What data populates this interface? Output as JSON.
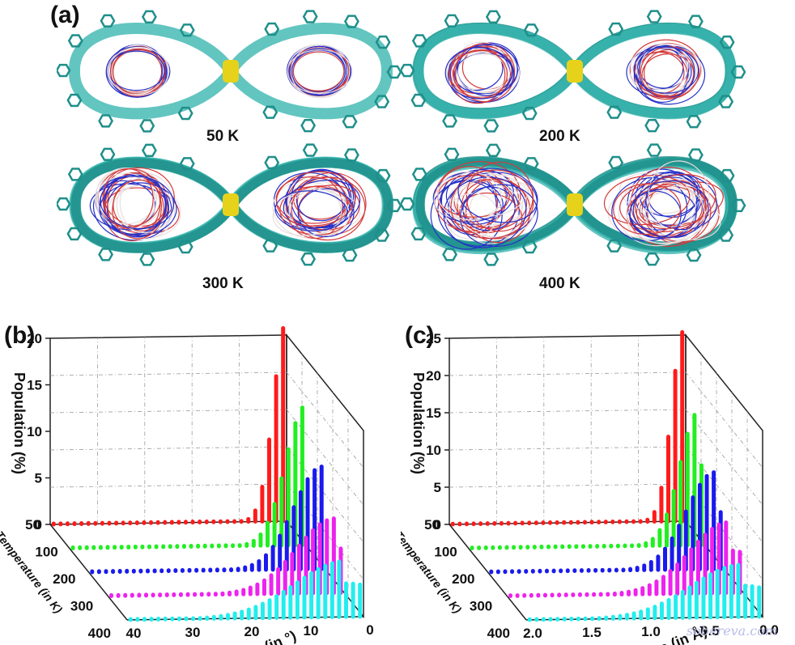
{
  "figure": {
    "panel_a_label": "(a)",
    "panel_b_label": "(b)",
    "panel_c_label": "(c)",
    "watermark": "sobereva.com"
  },
  "snapshots": [
    {
      "caption": "50 K",
      "spread": 0.05
    },
    {
      "caption": "200 K",
      "spread": 0.25
    },
    {
      "caption": "300 K",
      "spread": 0.5
    },
    {
      "caption": "400 K",
      "spread": 0.75
    }
  ],
  "colors": {
    "framework": "#3bb6b0",
    "framework_dark": "#1f8f8a",
    "junction": "#e6d21a",
    "ring_red": "#d43a3a",
    "ring_blue": "#2530c8",
    "ring_white": "#e8dede"
  },
  "chart_data": [
    {
      "type": "bar3d",
      "panel": "(b)",
      "zlabel": "Population (%)",
      "xlabel": "Angle (in °)",
      "ylabel": "Temperature (in K)",
      "zticks": [
        "0",
        "5",
        "10",
        "15",
        "20"
      ],
      "xticks": [
        "0",
        "10",
        "20",
        "30",
        "40"
      ],
      "yticks": [
        "50",
        "100",
        "200",
        "300",
        "400"
      ],
      "zlim": [
        0,
        20
      ],
      "xlim": [
        0,
        40
      ],
      "series": [
        {
          "temperature": 50,
          "color": "#ff1a1a",
          "peak": 21.5,
          "center": 0,
          "width": 2.2
        },
        {
          "temperature": 100,
          "color": "#22ee22",
          "peak": 15.0,
          "center": 0,
          "width": 3.4
        },
        {
          "temperature": 200,
          "color": "#1a1aee",
          "peak": 11.0,
          "center": 0.5,
          "width": 4.8
        },
        {
          "temperature": 300,
          "color": "#ee22ee",
          "peak": 8.0,
          "center": 1.5,
          "width": 6.5
        },
        {
          "temperature": 400,
          "color": "#22eeee",
          "peak": 6.0,
          "center": 3.0,
          "width": 8.5
        }
      ]
    },
    {
      "type": "bar3d",
      "panel": "(c)",
      "zlabel": "Population (%)",
      "xlabel": "Distance (in Å)",
      "ylabel": "Temperature (in K)",
      "zticks": [
        "0",
        "5",
        "10",
        "15",
        "20",
        "25"
      ],
      "xticks": [
        "0.0",
        "0.5",
        "1.0",
        "1.5",
        "2.0"
      ],
      "yticks": [
        "50",
        "100",
        "200",
        "300",
        "400"
      ],
      "zlim": [
        0,
        25
      ],
      "xlim": [
        0,
        2.0
      ],
      "series": [
        {
          "temperature": 50,
          "color": "#ff1a1a",
          "peak": 25.5,
          "center": 0.02,
          "width": 0.1
        },
        {
          "temperature": 100,
          "color": "#22ee22",
          "peak": 18.0,
          "center": 0.05,
          "width": 0.16
        },
        {
          "temperature": 200,
          "color": "#1a1aee",
          "peak": 13.0,
          "center": 0.08,
          "width": 0.24
        },
        {
          "temperature": 300,
          "color": "#ee22ee",
          "peak": 9.5,
          "center": 0.12,
          "width": 0.33
        },
        {
          "temperature": 400,
          "color": "#22eeee",
          "peak": 7.0,
          "center": 0.18,
          "width": 0.42
        }
      ]
    }
  ]
}
